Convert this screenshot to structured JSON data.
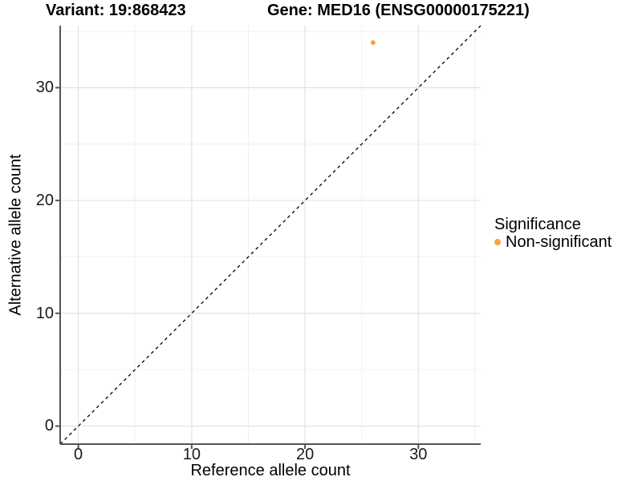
{
  "titles": {
    "variant": "Variant: 19:868423",
    "gene": "Gene: MED16 (ENSG00000175221)"
  },
  "chart_data": {
    "type": "scatter",
    "title": "Variant: 19:868423 — Gene: MED16 (ENSG00000175221)",
    "xlabel": "Reference allele count",
    "ylabel": "Alternative allele count",
    "x_ticks": [
      0,
      10,
      20,
      30
    ],
    "y_ticks": [
      0,
      10,
      20,
      30
    ],
    "xlim": [
      -1.6,
      35.5
    ],
    "ylim": [
      -1.6,
      35.5
    ],
    "grid": {
      "major": true,
      "minor": true
    },
    "identity_line": {
      "style": "dashed",
      "color": "#000000"
    },
    "series": [
      {
        "name": "Non-significant",
        "color": "#F7A442",
        "points": [
          [
            26,
            34
          ]
        ]
      }
    ],
    "legend": {
      "title": "Significance",
      "position": "right",
      "entries": [
        {
          "label": "Non-significant",
          "color": "#F7A442"
        }
      ]
    }
  },
  "colors": {
    "grid_major": "#E3E3E3",
    "grid_minor": "#F0F0F0",
    "axis_line": "#555555",
    "tick_text": "#1a1a1a",
    "point": "#F7A442"
  }
}
